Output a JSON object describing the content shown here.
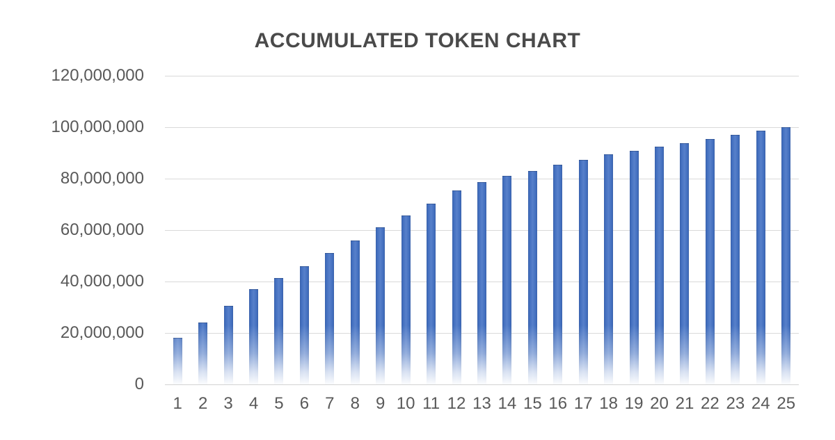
{
  "chart_data": {
    "type": "bar",
    "title": "ACCUMULATED TOKEN CHART",
    "xlabel": "",
    "ylabel": "",
    "categories": [
      "1",
      "2",
      "3",
      "4",
      "5",
      "6",
      "7",
      "8",
      "9",
      "10",
      "11",
      "12",
      "13",
      "14",
      "15",
      "16",
      "17",
      "18",
      "19",
      "20",
      "21",
      "22",
      "23",
      "24",
      "25"
    ],
    "values": [
      18000000,
      24100000,
      30500000,
      37000000,
      41400000,
      45900000,
      51000000,
      55900000,
      61000000,
      65700000,
      70400000,
      75500000,
      78700000,
      81100000,
      83100000,
      85400000,
      87400000,
      89500000,
      90900000,
      92400000,
      93800000,
      95400000,
      97000000,
      98600000,
      100000000
    ],
    "ylim": [
      0,
      120000000
    ],
    "y_ticks": [
      {
        "value": 120000000,
        "label": "120,000,000"
      },
      {
        "value": 100000000,
        "label": "100,000,000"
      },
      {
        "value": 80000000,
        "label": "80,000,000"
      },
      {
        "value": 60000000,
        "label": "60,000,000"
      },
      {
        "value": 40000000,
        "label": "40,000,000"
      },
      {
        "value": 20000000,
        "label": "20,000,000"
      },
      {
        "value": 0,
        "label": "0"
      }
    ],
    "grid": true,
    "legend": "none",
    "colors": {
      "bar": "#4472C4",
      "bar_fade_bottom": "#FFFFFF",
      "gridline": "#D9D9D9",
      "axis_text": "#595959",
      "title_text": "#4A4A4A",
      "background": "#FFFFFF"
    }
  }
}
